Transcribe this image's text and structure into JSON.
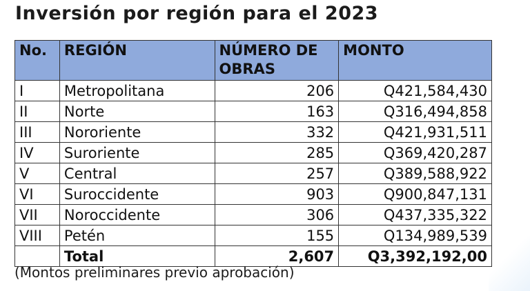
{
  "title": "Inversión por región para el 2023",
  "table": {
    "headers": [
      "No.",
      "REGIÓN",
      "NÚMERO DE OBRAS",
      "MONTO"
    ],
    "rows": [
      [
        "I",
        "Metropolitana",
        "206",
        "Q421,584,430"
      ],
      [
        "II",
        "Norte",
        "163",
        "Q316,494,858"
      ],
      [
        "III",
        "Nororiente",
        "332",
        "Q421,931,511"
      ],
      [
        "IV",
        "Suroriente",
        "285",
        "Q369,420,287"
      ],
      [
        "V",
        "Central",
        "257",
        "Q389,588,922"
      ],
      [
        "VI",
        "Suroccidente",
        "903",
        "Q900,847,131"
      ],
      [
        "VII",
        "Noroccidente",
        "306",
        "Q437,335,322"
      ],
      [
        "VIII",
        "Petén",
        "155",
        "Q134,989,539"
      ]
    ],
    "total": {
      "label": "Total",
      "obras": "2,607",
      "monto": "Q3,392,192,00"
    }
  },
  "note": "(Montos preliminares previo aprobación)",
  "colors": {
    "header_bg": "#8faadc",
    "border": "#333333"
  }
}
